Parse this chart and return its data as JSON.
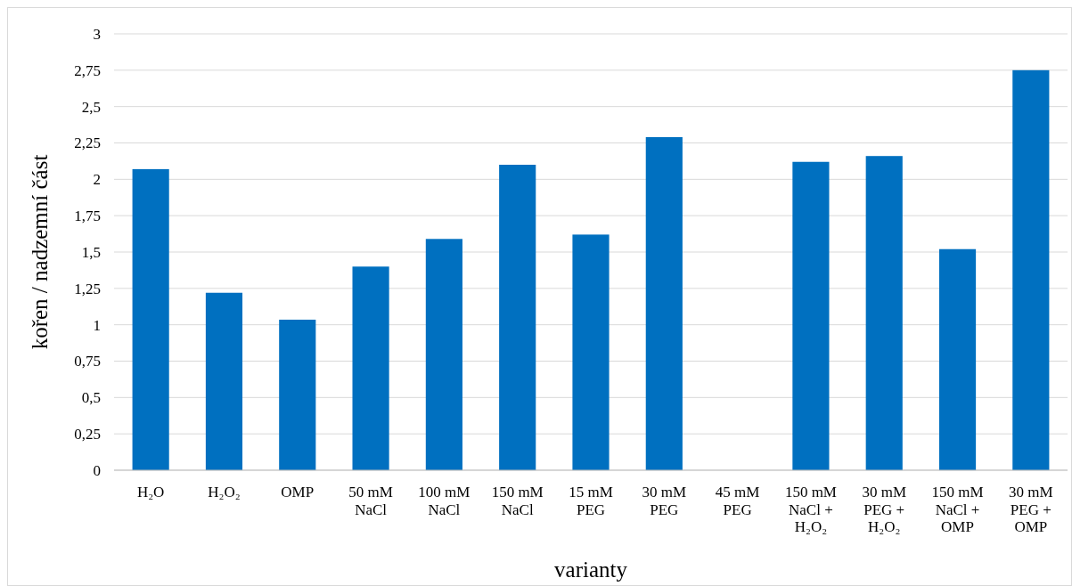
{
  "chart_data": {
    "type": "bar",
    "xlabel": "varianty",
    "ylabel": "kořen / nadzemní část",
    "categories": [
      "H₂O",
      "H₂O₂",
      "OMP",
      "50 mM\nNaCl",
      "100 mM\nNaCl",
      "150 mM\nNaCl",
      "15 mM\nPEG",
      "30 mM\nPEG",
      "45 mM\nPEG",
      "150 mM\nNaCl +\nH₂O₂",
      "30 mM\nPEG +\nH₂O₂",
      "150 mM\nNaCl +\nOMP",
      "30 mM\nPEG +\nOMP"
    ],
    "values": [
      2.07,
      1.22,
      1.035,
      1.4,
      1.59,
      2.1,
      1.62,
      2.29,
      null,
      2.12,
      2.16,
      1.52,
      2.75
    ],
    "color": "#0070c0",
    "ylim": [
      0,
      3
    ],
    "yticks": [
      0,
      {
        "value": 0.25,
        "label": "0,25"
      },
      {
        "value": 0.5,
        "label": "0,5"
      },
      {
        "value": 0.75,
        "label": "0,75"
      },
      1,
      {
        "value": 1.25,
        "label": "1,25"
      },
      {
        "value": 1.5,
        "label": "1,5"
      },
      {
        "value": 1.75,
        "label": "1,75"
      },
      2,
      {
        "value": 2.25,
        "label": "2,25"
      },
      {
        "value": 2.5,
        "label": "2,5"
      },
      {
        "value": 2.75,
        "label": "2,75"
      },
      3
    ],
    "grid": "y"
  }
}
